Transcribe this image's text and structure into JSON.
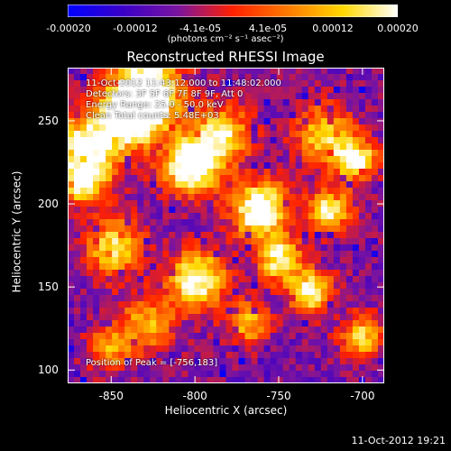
{
  "colorbar": {
    "ticks": [
      "-0.00020",
      "-0.00012",
      "-4.1e-05",
      "4.1e-05",
      "0.00012",
      "0.00020"
    ],
    "unit_label": "(photons cm⁻² s⁻¹ asec⁻²)",
    "stops": [
      "#0000ff",
      "#3a00c8",
      "#7a14a0",
      "#ff2000",
      "#ff7a00",
      "#ffd800",
      "#ffffff"
    ]
  },
  "info": {
    "line1": "11-Oct-2012 11:43:12.000 to 11:48:02.000",
    "line2": "Detectors: 3F 5F 6F 7F 8F 9F, Att 0",
    "line3": "Energy Range: 25.0 - 50.0 keV",
    "line4": "Clean     Total counts: 5.48E+03"
  },
  "peak_label": "Position of Peak = [-756,183]",
  "timestamp": "11-Oct-2012 19:21",
  "chart_data": {
    "type": "heatmap",
    "title": "Reconstructed RHESSI Image",
    "xlabel": "Heliocentric X (arcsec)",
    "ylabel": "Heliocentric Y (arcsec)",
    "xlim": [
      -876,
      -687
    ],
    "ylim": [
      92,
      282
    ],
    "xticks": [
      -850,
      -800,
      -750,
      -700
    ],
    "yticks": [
      100,
      150,
      200,
      250
    ],
    "colorbar_range": [
      -0.0002,
      0.0002
    ],
    "peak_position": [
      -756,
      183
    ]
  }
}
